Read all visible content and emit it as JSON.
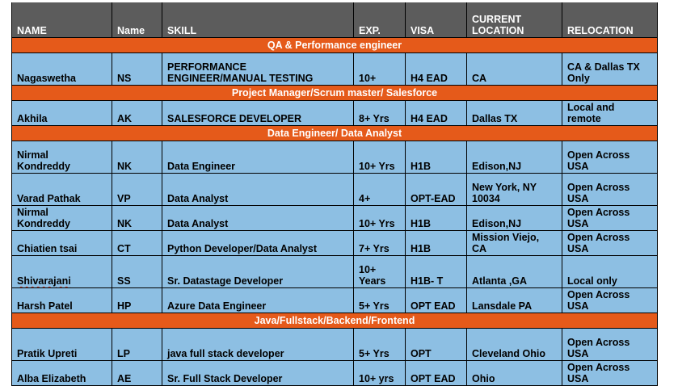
{
  "headers": {
    "name": "NAME",
    "initials": "Name",
    "skill": "SKILL",
    "experience": "EXP.",
    "visa": "VISA",
    "current_location_line1": "CURRENT",
    "current_location_line2": "LOCATION",
    "relocation": "RELOCATION"
  },
  "sections": [
    {
      "title": "QA & Performance engineer",
      "rows": [
        {
          "name": "Nagaswetha",
          "initials": "NS",
          "skill": "PERFORMANCE\nENGINEER/MANUAL TESTING",
          "exp": "10+",
          "visa": "H4 EAD",
          "location": "CA",
          "relocation": "CA & Dallas TX\nOnly"
        }
      ]
    },
    {
      "title": "Project Manager/Scrum master/ Salesforce",
      "rows": [
        {
          "name": "Akhila",
          "initials": "AK",
          "skill": "SALESFORCE DEVELOPER",
          "exp": "8+ Yrs",
          "visa": "H4 EAD",
          "location": "Dallas TX",
          "relocation": "Local and\nremote"
        }
      ]
    },
    {
      "title": "Data Engineer/ Data Analyst",
      "rows": [
        {
          "name": "Nirmal\nKondreddy",
          "initials": "NK",
          "skill": "Data Engineer",
          "exp": "10+ Yrs",
          "visa": "H1B",
          "location": "Edison,NJ",
          "relocation": "Open Across\nUSA"
        },
        {
          "name": "Varad Pathak",
          "initials": "VP",
          "skill": "Data Analyst",
          "exp": "4+",
          "visa": "OPT-EAD",
          "location": "New York, NY\n10034",
          "relocation": "Open Across\nUSA"
        },
        {
          "name": "Nirmal\nKondreddy",
          "initials": "NK",
          "skill": "Data Analyst",
          "exp": "10+ Yrs",
          "visa": "H1B",
          "location": "Edison,NJ",
          "relocation": "Open Across\nUSA"
        },
        {
          "name": "Chiatien tsai",
          "initials": "CT",
          "skill": "Python Developer/Data Analyst",
          "exp": "7+ Yrs",
          "visa": "H1B",
          "location": "Mission Viejo,\nCA",
          "relocation": "Open Across\nUSA"
        },
        {
          "name": "Shivarajani",
          "initials": "SS",
          "skill": "Sr. Datastage Developer",
          "exp": "10+\nYears",
          "visa": "H1B- T",
          "location": "Atlanta ,GA",
          "relocation": "Local only",
          "name_flagged": true
        },
        {
          "name": "Harsh Patel",
          "initials": "HP",
          "skill": "Azure Data Engineer",
          "exp": "5+ Yrs",
          "visa": "OPT EAD",
          "location": "Lansdale PA",
          "relocation": "Open Across\nUSA"
        }
      ]
    },
    {
      "title": "Java/Fullstack/Backend/Frontend",
      "rows": [
        {
          "name": "Pratik Upreti",
          "initials": "LP",
          "skill": "java full stack developer",
          "exp": "5+ Yrs",
          "visa": "OPT",
          "location": "Cleveland Ohio",
          "relocation": "Open Across\nUSA"
        },
        {
          "name": "Alba Elizabeth",
          "initials": "AE",
          "skill": "Sr. Full Stack Developer",
          "exp": "10+ yrs",
          "visa": "OPT EAD",
          "location": "Ohio",
          "relocation": "Open Across\nUSA"
        }
      ]
    }
  ],
  "colors": {
    "header_bg": "#5c5c5c",
    "section_bg": "#e55a1a",
    "row_bg": "#8dbfe3",
    "flag_underline": "#c0392b"
  }
}
